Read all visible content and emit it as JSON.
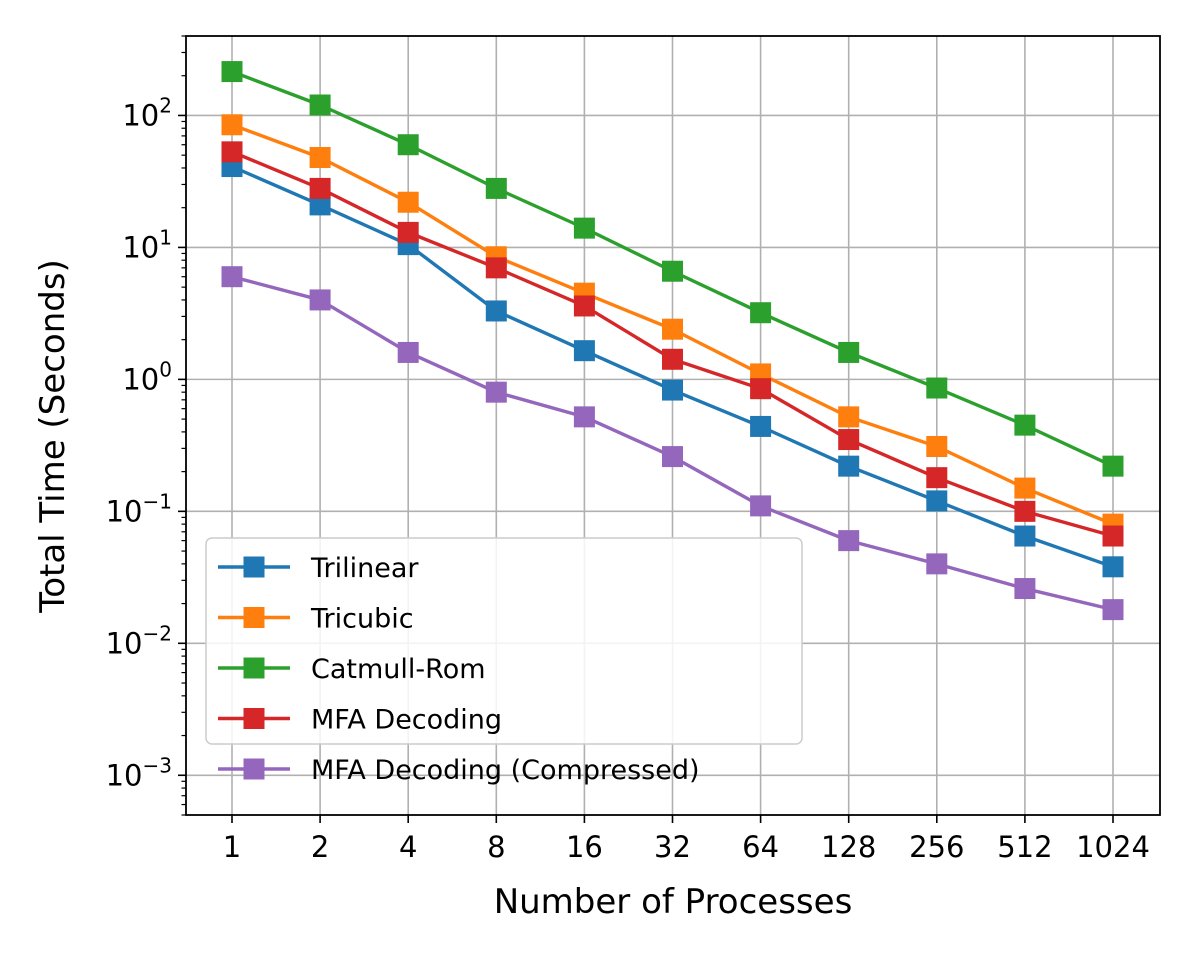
{
  "chart_data": {
    "type": "line",
    "title": "",
    "xlabel": "Number of Processes",
    "ylabel": "Total Time (Seconds)",
    "x_scale": "log2",
    "y_scale": "log10",
    "categories": [
      "1",
      "2",
      "4",
      "8",
      "16",
      "32",
      "64",
      "128",
      "256",
      "512",
      "1024"
    ],
    "y_ticks": [
      {
        "base": "10",
        "exp": "−3",
        "value": 0.001
      },
      {
        "base": "10",
        "exp": "−2",
        "value": 0.01
      },
      {
        "base": "10",
        "exp": "−1",
        "value": 0.1
      },
      {
        "base": "10",
        "exp": "0",
        "value": 1
      },
      {
        "base": "10",
        "exp": "1",
        "value": 10
      },
      {
        "base": "10",
        "exp": "2",
        "value": 100
      }
    ],
    "ylim": [
      0.0005,
      400
    ],
    "grid": true,
    "legend_position": "lower-left",
    "series": [
      {
        "name": "Trilinear",
        "color": "#1f77b4",
        "values": [
          41,
          21,
          10.5,
          3.3,
          1.65,
          0.83,
          0.44,
          0.22,
          0.12,
          0.065,
          0.038
        ]
      },
      {
        "name": "Tricubic",
        "color": "#ff7f0e",
        "values": [
          85,
          48,
          22,
          8.5,
          4.5,
          2.4,
          1.1,
          0.52,
          0.31,
          0.15,
          0.08
        ]
      },
      {
        "name": "Catmull-Rom",
        "color": "#2ca02c",
        "values": [
          215,
          120,
          60,
          28,
          14,
          6.6,
          3.2,
          1.6,
          0.86,
          0.45,
          0.22
        ]
      },
      {
        "name": "MFA Decoding",
        "color": "#d62728",
        "values": [
          53,
          28,
          13,
          7,
          3.6,
          1.42,
          0.85,
          0.35,
          0.18,
          0.1,
          0.065
        ]
      },
      {
        "name": "MFA Decoding (Compressed)",
        "color": "#9467bd",
        "values": [
          6,
          4,
          1.6,
          0.8,
          0.52,
          0.26,
          0.11,
          0.06,
          0.04,
          0.026,
          0.018
        ]
      }
    ]
  }
}
